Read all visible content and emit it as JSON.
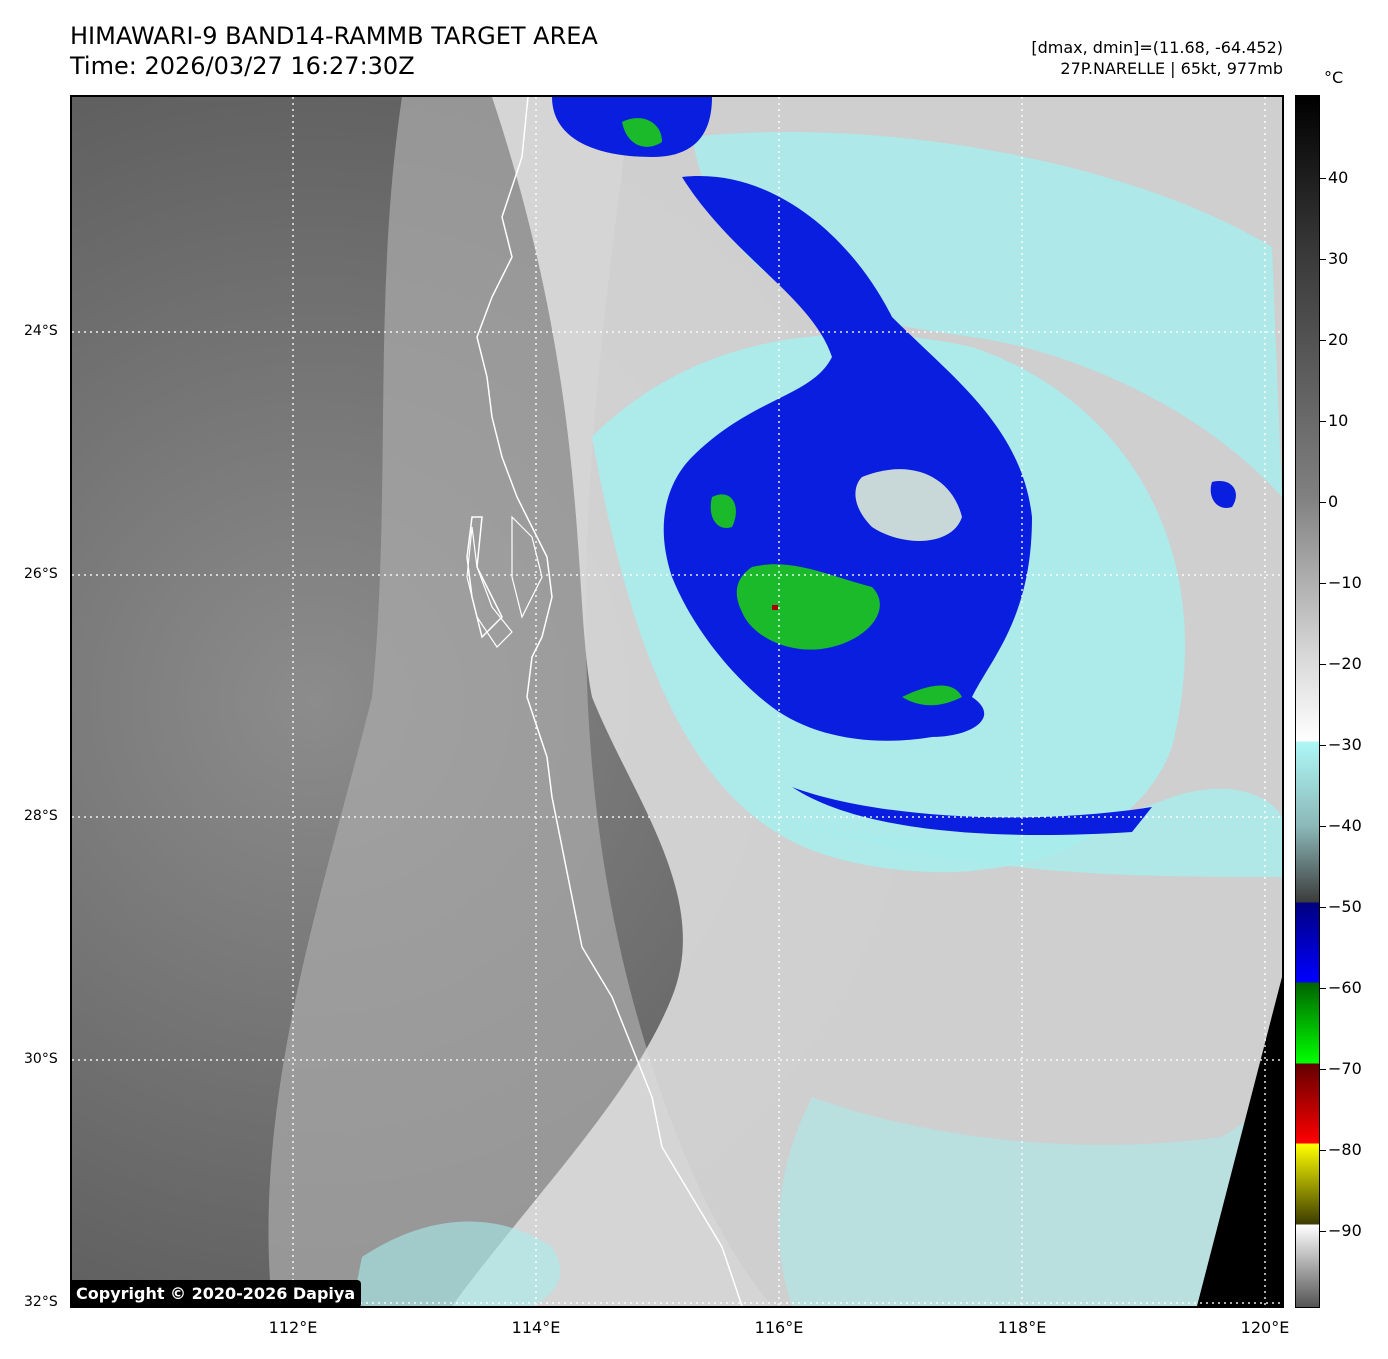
{
  "header": {
    "title": "HIMAWARI-9 BAND14-RAMMB TARGET AREA",
    "time": "Time: 2026/03/27 16:27:30Z",
    "range": "[dmax, dmin]=(11.68, -64.452)",
    "storm": "27P.NARELLE | 65kt, 977mb"
  },
  "map": {
    "lat_labels": [
      "24°S",
      "26°S",
      "28°S",
      "30°S",
      "32°S"
    ],
    "lon_labels": [
      "112°E",
      "114°E",
      "116°E",
      "118°E",
      "120°E"
    ]
  },
  "colorbar": {
    "unit": "°C",
    "labels": [
      "40",
      "30",
      "20",
      "10",
      "0",
      "−10",
      "−20",
      "−30",
      "−40",
      "−50",
      "−60",
      "−70",
      "−80",
      "−90"
    ]
  },
  "colors": {
    "ocean_gray": "#6e6e6e",
    "cloud_white": "#e6e6e6",
    "cyan": "#a8ecec",
    "blue": "#0a1ee0",
    "green": "#1aba2a",
    "red": "#aa0000",
    "coast": "#ffffff"
  },
  "copyright": "Copyright © 2020-2026 Dapiya"
}
